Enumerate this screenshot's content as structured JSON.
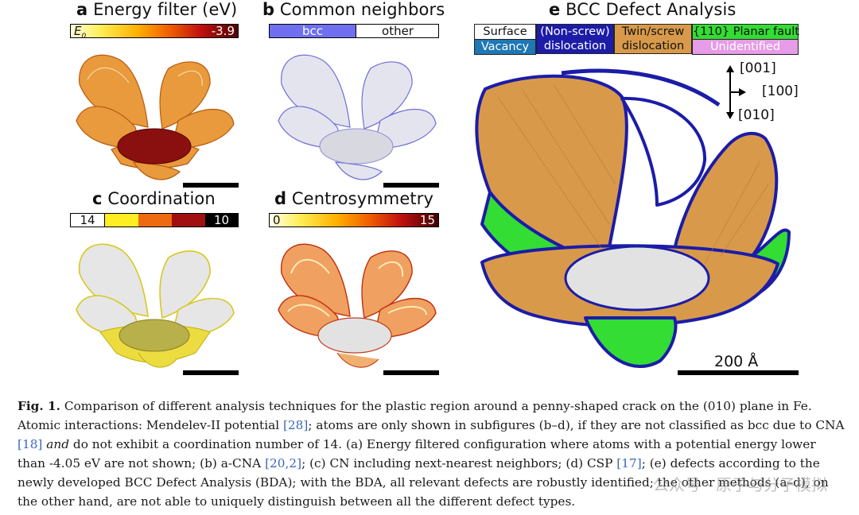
{
  "panels": {
    "a": {
      "letter": "a",
      "title": "Energy filter (eV)",
      "cbar_left": "E",
      "cbar_left_sub": "0",
      "cbar_right": "-3.9"
    },
    "b": {
      "letter": "b",
      "title": "Common neighbors",
      "legend_bcc": "bcc",
      "legend_other": "other"
    },
    "c": {
      "letter": "c",
      "title": "Coordination",
      "cbar_left": "14",
      "cbar_right": "10"
    },
    "d": {
      "letter": "d",
      "title": "Centrosymmetry",
      "cbar_left": "0",
      "cbar_right": "15"
    },
    "e": {
      "letter": "e",
      "title": "BCC Defect Analysis",
      "legend": {
        "surface": "Surface",
        "vacancy": "Vacancy",
        "nonscrew_1": "(Non-screw)",
        "nonscrew_2": "dislocation",
        "twin_1": "Twin/screw",
        "twin_2": "dislocation",
        "planar": "{110} Planar fault",
        "unidentified": "Unidentified"
      },
      "axes": {
        "z": "[001]",
        "x": "[100]",
        "y": "[010]"
      },
      "scale_label": "200 Å"
    }
  },
  "colors": {
    "bcc": "#6f6ff0",
    "surface": "#ffffff",
    "vacancy": "#1f77b4",
    "nonscrew": "#1c1ca8",
    "twin": "#d89a4a",
    "planar": "#33dd33",
    "unidentified": "#e69ce6"
  },
  "caption": {
    "fig_label": "Fig. 1.",
    "t1": " Comparison of different analysis techniques for the plastic region around a penny-shaped crack on the (010) plane in Fe. Atomic interactions: Mendelev-II potential ",
    "r1": "[28]",
    "t2": "; atoms are only shown in subfigures (b–d), if they are not classified as bcc due to CNA ",
    "r2": "[18]",
    "t3_em": " and",
    "t4": " do not exhibit a coordination number of 14. (a) Energy filtered configuration where atoms with a potential energy lower than -4.05 eV are not shown; (b) a-CNA ",
    "r3": "[20,2]",
    "t5": "; (c) CN including next-nearest neighbors; (d) CSP ",
    "r4": "[17]",
    "t6": "; (e) defects according to the newly developed BCC Defect Analysis (BDA); with the BDA, all relevant defects are robustly identified; the other methods (a–d), on the other hand, are not able to uniquely distinguish between all the different defect types."
  },
  "watermark": "公众号 · 原子与分子模拟"
}
